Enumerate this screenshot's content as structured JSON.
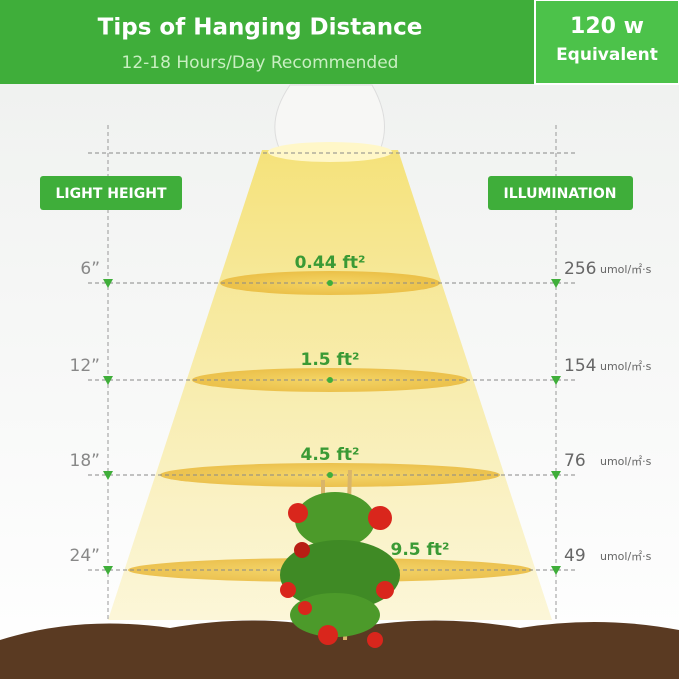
{
  "header": {
    "title": "Tips of Hanging Distance",
    "subtitle": "12-18 Hours/Day Recommended",
    "badge_power": "120 w",
    "badge_label": "Equivalent"
  },
  "labels": {
    "left": "LIGHT HEIGHT",
    "right": "ILLUMINATION",
    "illumination_unit": "umol/㎡·s"
  },
  "rows": [
    {
      "height": "6”",
      "area": "0.44 ft²",
      "illumination": "256"
    },
    {
      "height": "12”",
      "area": "1.5 ft²",
      "illumination": "154"
    },
    {
      "height": "18”",
      "area": "4.5 ft²",
      "illumination": "76"
    },
    {
      "height": "24”",
      "area": "9.5 ft²",
      "illumination": "49"
    }
  ]
}
